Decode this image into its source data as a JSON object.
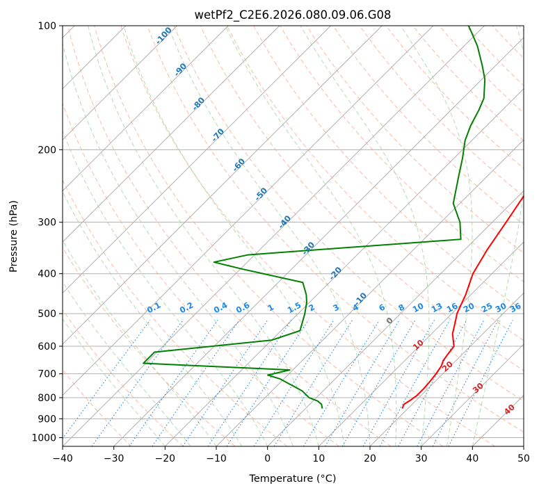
{
  "colors": {
    "temperature": "#ff0000",
    "dewpoint": "#008000",
    "isotherm": "#a9a9a9",
    "dry_adiabat": "#f4a582",
    "moist_adiabat": "#9fd39f",
    "mixing_ratio": "#1e88e5",
    "moist_label": "#1f77b4",
    "dry_label": "#d62728",
    "grid": "#b0b0b0"
  },
  "chart_data": {
    "type": "line",
    "title": "wetPf2_C2E6.2026.080.09.06.G08",
    "xlabel": "Temperature (°C)",
    "ylabel": "Pressure (hPa)",
    "xlim": [
      -40,
      50
    ],
    "ylim": [
      1050,
      100
    ],
    "y_scale": "log",
    "x_ticks": [
      -40,
      -30,
      -20,
      -10,
      0,
      10,
      20,
      30,
      40,
      50
    ],
    "x_tick_labels": [
      "−40",
      "−30",
      "−20",
      "−10",
      "0",
      "10",
      "20",
      "30",
      "40",
      "50"
    ],
    "y_ticks": [
      100,
      200,
      300,
      400,
      500,
      600,
      700,
      800,
      900,
      1000
    ],
    "y_tick_labels": [
      "100",
      "200",
      "300",
      "400",
      "500",
      "600",
      "700",
      "800",
      "900",
      "1000"
    ],
    "skew_degC_per_log_unit": 80.62,
    "series": [
      {
        "name": "Temperature",
        "points": [
          [
            18.9,
            850
          ],
          [
            18.4,
            830
          ],
          [
            18.9,
            810
          ],
          [
            19.2,
            790
          ],
          [
            19.2,
            760
          ],
          [
            19.0,
            730
          ],
          [
            18.7,
            700
          ],
          [
            18.2,
            670
          ],
          [
            17.5,
            650
          ],
          [
            17.2,
            630
          ],
          [
            16.8,
            600
          ],
          [
            14.1,
            560
          ],
          [
            12.1,
            520
          ],
          [
            11.0,
            500
          ],
          [
            9.0,
            450
          ],
          [
            6.3,
            400
          ],
          [
            4.4,
            350
          ],
          [
            2.7,
            300
          ],
          [
            0.6,
            250
          ],
          [
            -0.3,
            230
          ],
          [
            0.7,
            215
          ],
          [
            3.0,
            200
          ],
          [
            6.3,
            185
          ],
          [
            9.0,
            170
          ],
          [
            10.1,
            160
          ],
          [
            10.4,
            150
          ],
          [
            10.4,
            140
          ],
          [
            11.6,
            130
          ],
          [
            12.0,
            122
          ],
          [
            12.4,
            115
          ],
          [
            13.1,
            108
          ],
          [
            13.9,
            100
          ]
        ]
      },
      {
        "name": "Dewpoint",
        "points": [
          [
            3.3,
            850
          ],
          [
            2.3,
            830
          ],
          [
            0.9,
            815
          ],
          [
            -1.4,
            800
          ],
          [
            -4.1,
            770
          ],
          [
            -10.8,
            720
          ],
          [
            -13.9,
            705
          ],
          [
            -10.6,
            685
          ],
          [
            -40.5,
            660
          ],
          [
            -40.5,
            620
          ],
          [
            -20.0,
            580
          ],
          [
            -16.3,
            550
          ],
          [
            -18.7,
            500
          ],
          [
            -20.5,
            470
          ],
          [
            -22.1,
            450
          ],
          [
            -25.2,
            420
          ],
          [
            -39.5,
            390
          ],
          [
            -46.5,
            375
          ],
          [
            -41.3,
            360
          ],
          [
            -2.8,
            330
          ],
          [
            -6.3,
            300
          ],
          [
            -11.3,
            270
          ],
          [
            -15.8,
            230
          ],
          [
            -18.3,
            210
          ],
          [
            -21.3,
            190
          ],
          [
            -23.1,
            175
          ],
          [
            -24.6,
            160
          ],
          [
            -25.9,
            150
          ],
          [
            -29.4,
            135
          ],
          [
            -32.6,
            125
          ],
          [
            -37.4,
            112
          ],
          [
            -41.1,
            104
          ],
          [
            -43.1,
            100
          ]
        ]
      }
    ],
    "dry_adiabat_labels": [
      "10",
      "20",
      "30",
      "40"
    ],
    "moist_adiabat_labels": [
      "-100",
      "-90",
      "-80",
      "-70",
      "-60",
      "-50",
      "-40",
      "-30",
      "-20",
      "-10",
      "0"
    ],
    "mixing_ratio_labels": [
      "0.1",
      "0.2",
      "0.4",
      "0.6",
      "1",
      "1.5",
      "2",
      "3",
      "4",
      "6",
      "8",
      "10",
      "13",
      "16",
      "20",
      "25",
      "30",
      "36"
    ]
  }
}
